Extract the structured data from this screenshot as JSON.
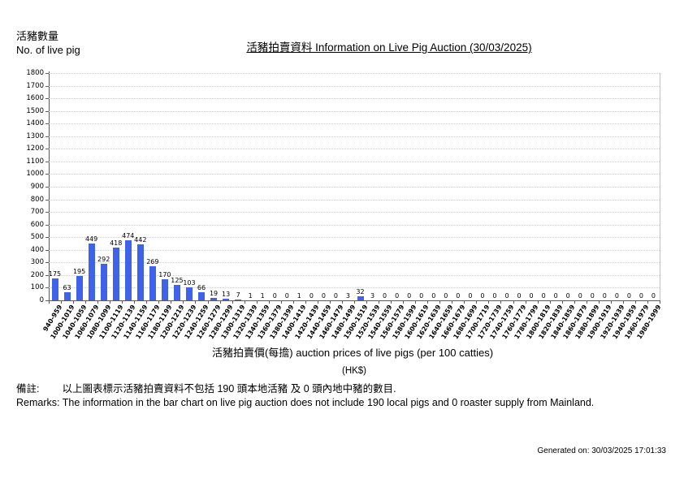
{
  "page": {
    "y_axis_caption_zh": "活豬數量",
    "y_axis_caption_en": "No. of live pig",
    "title": "活豬拍賣資料 Information on Live Pig Auction (30/03/2025)",
    "x_axis_title": "活豬拍賣價(每擔) auction prices of live pigs (per 100 catties)",
    "x_axis_unit": "(HK$)",
    "remarks_zh_label": "備註:",
    "remarks_zh_text": "以上圖表標示活豬拍賣資料不包括 190 頭本地活豬 及 0 頭內地中豬的數目.",
    "remarks_en": "Remarks: The information in the bar chart on live pig auction does not include 190 local pigs and 0 roaster supply from Mainland.",
    "footer_generated": "Generated on: 30/03/2025 17:01:33"
  },
  "chart_data": {
    "type": "bar",
    "title": "活豬拍賣資料 Information on Live Pig Auction (30/03/2025)",
    "xlabel": "活豬拍賣價(每擔) auction prices of live pigs (per 100 catties) (HK$)",
    "ylabel": "活豬數量 No. of live pig",
    "ylim": [
      0,
      1800
    ],
    "ytick_step": 100,
    "grid": true,
    "legend": false,
    "bar_color": "#3e63e9",
    "categories": [
      "940-959",
      "1000-1019",
      "1040-1059",
      "1060-1079",
      "1080-1099",
      "1100-1119",
      "1120-1139",
      "1140-1159",
      "1160-1179",
      "1180-1199",
      "1200-1219",
      "1220-1239",
      "1240-1259",
      "1260-1279",
      "1280-1299",
      "1300-1319",
      "1320-1339",
      "1340-1359",
      "1360-1379",
      "1380-1399",
      "1400-1419",
      "1420-1439",
      "1440-1459",
      "1460-1479",
      "1480-1499",
      "1500-1519",
      "1520-1539",
      "1540-1559",
      "1560-1579",
      "1580-1599",
      "1600-1619",
      "1620-1639",
      "1640-1659",
      "1660-1679",
      "1680-1699",
      "1700-1719",
      "1720-1739",
      "1740-1759",
      "1760-1779",
      "1780-1799",
      "1800-1819",
      "1820-1839",
      "1840-1859",
      "1860-1879",
      "1880-1899",
      "1900-1919",
      "1920-1939",
      "1940-1959",
      "1960-1979",
      "1980-1999"
    ],
    "values": [
      175,
      63,
      195,
      449,
      292,
      418,
      474,
      442,
      269,
      170,
      125,
      103,
      66,
      19,
      13,
      7,
      1,
      1,
      0,
      0,
      1,
      0,
      0,
      0,
      3,
      32,
      3,
      0,
      0,
      0,
      0,
      0,
      0,
      0,
      0,
      0,
      0,
      0,
      0,
      0,
      0,
      0,
      0,
      0,
      0,
      0,
      0,
      0,
      0,
      0
    ]
  }
}
